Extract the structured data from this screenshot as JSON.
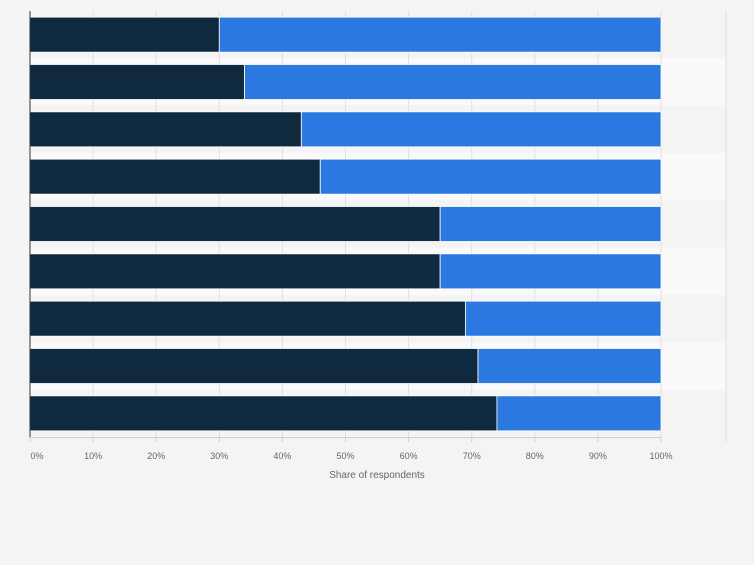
{
  "chart_data": {
    "type": "bar",
    "orientation": "horizontal",
    "stacked": true,
    "categories": [
      "",
      "",
      "",
      "",
      "",
      "",
      "",
      "",
      ""
    ],
    "series": [
      {
        "color": "#0f2a3f",
        "values": [
          30,
          34,
          43,
          46,
          65,
          65,
          69,
          71,
          74
        ]
      },
      {
        "color": "#2a78e0",
        "values": [
          70,
          66,
          57,
          54,
          35,
          35,
          31,
          29,
          26
        ]
      }
    ],
    "xlabel": "Share of respondents",
    "xlim": [
      0,
      100
    ],
    "xticks": [
      {
        "value": 0,
        "label": "0%"
      },
      {
        "value": 10,
        "label": "10%"
      },
      {
        "value": 20,
        "label": "20%"
      },
      {
        "value": 30,
        "label": "30%"
      },
      {
        "value": 40,
        "label": "40%"
      },
      {
        "value": 50,
        "label": "50%"
      },
      {
        "value": 60,
        "label": "60%"
      },
      {
        "value": 70,
        "label": "70%"
      },
      {
        "value": 80,
        "label": "80%"
      },
      {
        "value": 90,
        "label": "90%"
      },
      {
        "value": 100,
        "label": "100%"
      }
    ],
    "grid": true,
    "legend": "none"
  }
}
